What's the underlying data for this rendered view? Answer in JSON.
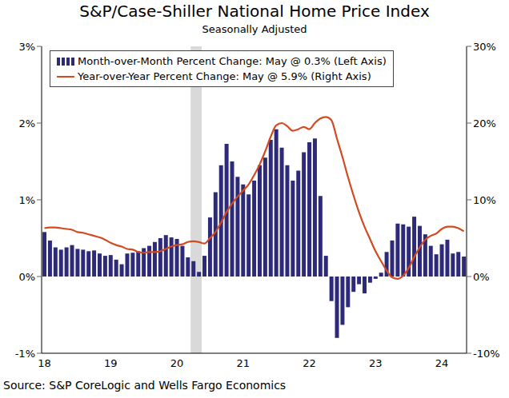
{
  "chart_data": {
    "type": "bar",
    "title": "S&P/Case-Shiller National Home Price Index",
    "subtitle": "Seasonally Adjusted",
    "source": "Source: S&P CoreLogic and Wells Fargo Economics",
    "categories": [
      "18",
      null,
      null,
      null,
      null,
      null,
      null,
      null,
      null,
      null,
      null,
      null,
      "19",
      null,
      null,
      null,
      null,
      null,
      null,
      null,
      null,
      null,
      null,
      null,
      "20",
      null,
      null,
      null,
      null,
      null,
      null,
      null,
      null,
      null,
      null,
      null,
      "21",
      null,
      null,
      null,
      null,
      null,
      null,
      null,
      null,
      null,
      null,
      null,
      "22",
      null,
      null,
      null,
      null,
      null,
      null,
      null,
      null,
      null,
      null,
      null,
      "23",
      null,
      null,
      null,
      null,
      null,
      null,
      null,
      null,
      null,
      null,
      null,
      "24",
      null,
      null,
      null,
      null
    ],
    "series": [
      {
        "name": "Month-over-Month Percent Change: May @ 0.3% (Left Axis)",
        "type": "bar",
        "color": "#2e2a7a",
        "values": [
          0.58,
          0.47,
          0.38,
          0.35,
          0.38,
          0.41,
          0.36,
          0.35,
          0.33,
          0.34,
          0.3,
          0.27,
          0.28,
          0.22,
          0.16,
          0.3,
          0.31,
          0.33,
          0.37,
          0.4,
          0.45,
          0.5,
          0.54,
          0.51,
          0.49,
          0.4,
          0.25,
          0.2,
          0.06,
          0.27,
          0.77,
          1.1,
          1.45,
          1.73,
          1.5,
          1.3,
          1.2,
          1.07,
          1.25,
          1.45,
          1.55,
          1.78,
          1.92,
          1.68,
          1.45,
          1.25,
          1.38,
          1.62,
          1.75,
          1.8,
          1.05,
          0.27,
          -0.32,
          -0.8,
          -0.63,
          -0.4,
          -0.2,
          -0.1,
          -0.22,
          -0.08,
          -0.03,
          0.05,
          0.32,
          0.47,
          0.69,
          0.68,
          0.65,
          0.78,
          0.66,
          0.55,
          0.4,
          0.29,
          0.42,
          0.48,
          0.3,
          0.32,
          0.26
        ]
      },
      {
        "name": "Year-over-Year Percent Change: May @ 5.9% (Right Axis)",
        "type": "line",
        "axis": "y2",
        "color": "#d34a20",
        "values": [
          6.3,
          6.4,
          6.4,
          6.3,
          6.2,
          6.1,
          5.8,
          5.7,
          5.5,
          5.3,
          5.1,
          4.8,
          4.4,
          4.1,
          3.9,
          3.6,
          3.5,
          3.2,
          3.1,
          3.2,
          3.2,
          3.3,
          3.6,
          3.9,
          4.1,
          4.2,
          4.5,
          4.6,
          4.5,
          4.3,
          5.0,
          5.8,
          7.0,
          8.4,
          9.5,
          10.4,
          11.2,
          12.0,
          13.2,
          14.6,
          16.3,
          18.2,
          19.7,
          20.0,
          19.6,
          19.0,
          19.2,
          19.5,
          19.2,
          20.0,
          20.6,
          20.8,
          20.4,
          18.0,
          15.6,
          13.0,
          10.6,
          8.4,
          6.5,
          4.9,
          3.3,
          2.0,
          0.8,
          -0.1,
          -0.3,
          0.1,
          1.1,
          2.5,
          3.8,
          4.8,
          5.3,
          5.6,
          6.2,
          6.5,
          6.5,
          6.3,
          5.9
        ]
      }
    ],
    "ylim": [
      -1,
      3
    ],
    "yticks": [
      {
        "value": -1,
        "label": "-1%"
      },
      {
        "value": 0,
        "label": "0%"
      },
      {
        "value": 1,
        "label": "1%"
      },
      {
        "value": 2,
        "label": "2%"
      },
      {
        "value": 3,
        "label": "3%"
      }
    ],
    "y2lim": [
      -10,
      30
    ],
    "y2ticks": [
      {
        "value": -10,
        "label": "-10%"
      },
      {
        "value": 0,
        "label": "0%"
      },
      {
        "value": 10,
        "label": "10%"
      },
      {
        "value": 20,
        "label": "20%"
      },
      {
        "value": 30,
        "label": "30%"
      }
    ],
    "recession_shading": {
      "from": 27,
      "to": 28,
      "color": "#d9d9d9"
    },
    "grid": false,
    "legend": "upper left"
  }
}
